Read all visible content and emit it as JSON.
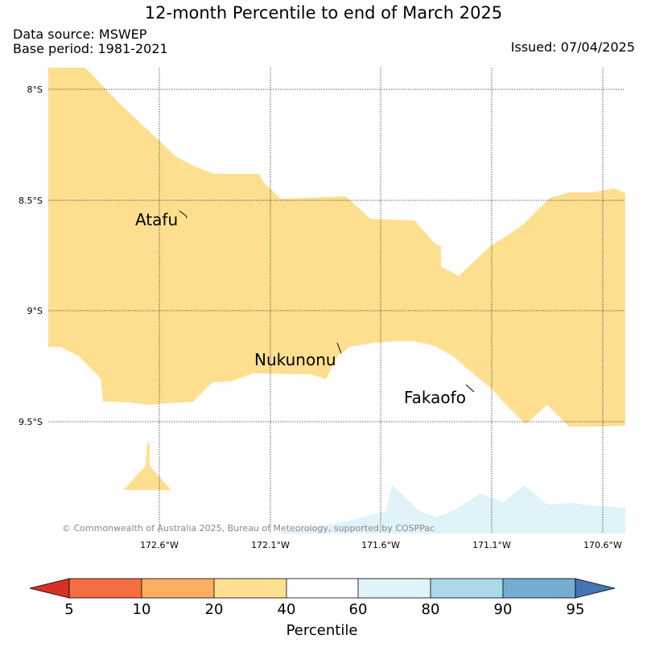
{
  "header": {
    "title": "12-month Percentile to end of March 2025",
    "data_source": "Data source: MSWEP",
    "base_period": "Base period: 1981-2021",
    "issued": "Issued: 07/04/2025"
  },
  "map": {
    "lat_labels": [
      "8°S",
      "8.5°S",
      "9°S",
      "9.5°S"
    ],
    "lon_labels": [
      "172.6°W",
      "172.1°W",
      "171.6°W",
      "171.1°W",
      "170.6°W"
    ],
    "places": [
      "Atafu",
      "Nukunonu",
      "Fakaofo"
    ],
    "copyright": "© Commonwealth of Australia 2025, Bureau of Meteorology, supported by COSPPac",
    "fill_20_40": "#fedf90",
    "fill_60_80": "#e0f3f8"
  },
  "colorbar": {
    "ticks": [
      "5",
      "10",
      "20",
      "40",
      "60",
      "80",
      "90",
      "95"
    ],
    "label": "Percentile",
    "colors": [
      "#d73027",
      "#f46d43",
      "#fdae61",
      "#fee090",
      "#ffffff",
      "#e0f3f8",
      "#abd9e9",
      "#74add1",
      "#4575b4"
    ]
  }
}
